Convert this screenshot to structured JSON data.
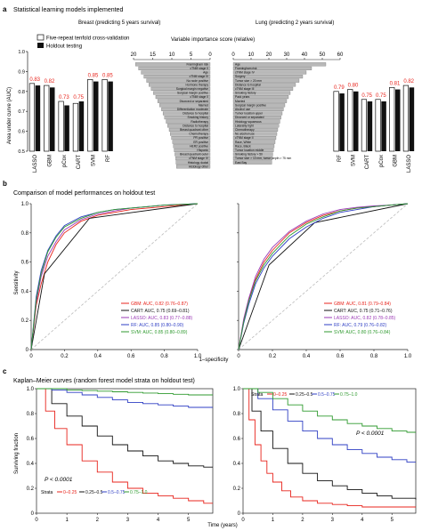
{
  "panels": {
    "a": {
      "letter": "a",
      "title": "Statistical learning models implemented",
      "breast_header": "Breast (predicting 5 years survival)",
      "lung_header": "Lung (predicting 2 years survival)",
      "legend": {
        "cv": "Five-repeat tenfold cross-validation",
        "holdout": "Holdout testing"
      },
      "ylabel": "Area under curve (AUC)",
      "vi_title": "Variable importance score (relative)"
    },
    "b": {
      "letter": "b",
      "title": "Comparison of model performances on holdout test",
      "ylabel": "Sensitivity",
      "xlabel": "1–specificity"
    },
    "c": {
      "letter": "c",
      "title": "Kaplan–Meier curves (random forest model strata on holdout test)",
      "ylabel": "Surviving fraction",
      "xlabel": "Time (years)"
    }
  },
  "colors": {
    "gbm": "#e8241c",
    "cart": "#111111",
    "lasso": "#9b39b5",
    "rf": "#2f3fc4",
    "svm": "#2f9a2f",
    "auc_label": "#e8241c",
    "vi_bar": "#b8b8b8",
    "holdout_bar": "#111111",
    "cv_bar": "#ffffff",
    "diagonal": "#bbbbbb",
    "km_s1": "#e8241c",
    "km_s2": "#111111",
    "km_s3": "#2f3fc4",
    "km_s4": "#2f9a2f"
  },
  "chart_data": [
    {
      "id": "a-breast-auc",
      "type": "bar",
      "categories": [
        "LASSO",
        "GBM",
        "pCox",
        "CART",
        "SVM",
        "RF"
      ],
      "series": [
        {
          "name": "Five-repeat tenfold cross-validation",
          "values": [
            0.84,
            0.83,
            0.75,
            0.74,
            0.86,
            0.86
          ]
        },
        {
          "name": "Holdout testing",
          "values": [
            0.83,
            0.82,
            0.73,
            0.75,
            0.85,
            0.85
          ]
        }
      ],
      "value_labels": [
        "0.83",
        "0.82",
        "0.73",
        "0.75",
        "0.85",
        "0.85"
      ],
      "ylim": [
        0.5,
        1.0
      ],
      "yticks": [
        "0.5",
        "0.6",
        "0.7",
        "0.8",
        "0.9",
        "1.0"
      ]
    },
    {
      "id": "a-lung-auc",
      "type": "bar",
      "categories": [
        "RF",
        "SVM",
        "CART",
        "pCox",
        "GBM",
        "LASSO"
      ],
      "series": [
        {
          "name": "Five-repeat tenfold cross-validation",
          "values": [
            0.8,
            0.81,
            0.76,
            0.76,
            0.82,
            0.83
          ]
        },
        {
          "name": "Holdout testing",
          "values": [
            0.79,
            0.8,
            0.75,
            0.75,
            0.81,
            0.82
          ]
        }
      ],
      "value_labels": [
        "0.79",
        "0.80",
        "0.75",
        "0.75",
        "0.81",
        "0.82"
      ],
      "ylim": [
        0.5,
        1.0
      ]
    },
    {
      "id": "a-breast-vi",
      "type": "bar",
      "orientation": "horizontal",
      "direction": "leftward",
      "xticks": [
        "20",
        "15",
        "10",
        "5",
        "0"
      ],
      "xlim": [
        0,
        20
      ],
      "categories": [
        "Framingham risk",
        "cTNM stage II",
        "Age",
        "cTNM stage III",
        "No node positive",
        "Hormone therapy",
        "Surgical margin negative",
        "Surgical margin positive",
        "cTNM stage 0",
        "Divorced or separated",
        "Married",
        "Differentiation moderate",
        "Distance to hospital",
        "Smoking history",
        "Radiotherapy",
        "Distance to hospital",
        "Breast quadrant other",
        "Chemotherapy",
        "PR positive",
        "ER positive",
        "HER2 positive",
        "Hispanic",
        "Breast quadrant outer",
        "cTNM stage IV",
        "Histology ductal",
        "Histology other"
      ],
      "values": [
        19.5,
        18.7,
        18.0,
        17.3,
        16.6,
        16.0,
        15.4,
        14.8,
        14.2,
        13.7,
        13.2,
        12.7,
        12.3,
        11.9,
        11.5,
        11.1,
        10.7,
        10.4,
        10.1,
        9.8,
        9.6,
        9.4,
        9.2,
        9.0,
        8.9,
        8.8
      ]
    },
    {
      "id": "a-lung-vi",
      "type": "bar",
      "orientation": "horizontal",
      "direction": "rightward",
      "xticks": [
        "0",
        "10",
        "20",
        "30",
        "40",
        "50",
        "60"
      ],
      "xlim": [
        0,
        60
      ],
      "categories": [
        "Age",
        "Framingham risk",
        "cTNM stage IV",
        "Surgery",
        "Tumor size > 20 mm",
        "Distance to hospital",
        "cTNM stage III",
        "Smoking history",
        "Pack years",
        "Married",
        "Surgical margin positive",
        "Alcohol use",
        "Tumor location upper",
        "Divorced or separated",
        "Histology squamous",
        "Laterality right",
        "Chemotherapy",
        "No alcohol use",
        "cTNM stage II",
        "Race, White",
        "Race, Black",
        "Tumor location middle",
        "Smoking history > 50",
        "Tumor size > 10 mm, tumor depth > 75 mm",
        "East Bay"
      ],
      "values": [
        52,
        44,
        41,
        39,
        37,
        35,
        33.5,
        32,
        31,
        30,
        29,
        28.2,
        27.5,
        26.8,
        26.2,
        25.6,
        25,
        24.5,
        24,
        23.5,
        23,
        22.6,
        22.2,
        21.9,
        21.6
      ]
    },
    {
      "id": "b-breast-roc",
      "type": "line",
      "xlim": [
        0,
        1
      ],
      "ylim": [
        0,
        1
      ],
      "ticks": [
        "0",
        "0.2",
        "0.4",
        "0.6",
        "0.8",
        "1.0"
      ],
      "series": [
        {
          "name": "GBM",
          "auc": "GBM: AUC, 0.82 (0.76–0.87)",
          "x": [
            0,
            0.03,
            0.06,
            0.1,
            0.15,
            0.2,
            0.3,
            0.4,
            0.5,
            0.6,
            0.7,
            0.8,
            0.9,
            1
          ],
          "y": [
            0,
            0.3,
            0.45,
            0.6,
            0.72,
            0.8,
            0.88,
            0.92,
            0.94,
            0.96,
            0.97,
            0.98,
            0.99,
            1
          ]
        },
        {
          "name": "CART",
          "auc": "CART: AUC, 0.75 (0.69–0.81)",
          "x": [
            0,
            0.08,
            0.35,
            1
          ],
          "y": [
            0,
            0.52,
            0.9,
            1
          ]
        },
        {
          "name": "LASSO",
          "auc": "LASSO: AUC, 0.83 (0.77–0.88)",
          "x": [
            0,
            0.03,
            0.06,
            0.1,
            0.15,
            0.2,
            0.3,
            0.4,
            0.5,
            0.6,
            0.7,
            0.8,
            0.9,
            1
          ],
          "y": [
            0,
            0.32,
            0.5,
            0.64,
            0.74,
            0.82,
            0.89,
            0.93,
            0.95,
            0.97,
            0.98,
            0.99,
            0.995,
            1
          ]
        },
        {
          "name": "RF",
          "auc": "RF: AUC, 0.85 (0.80–0.90)",
          "x": [
            0,
            0.03,
            0.06,
            0.1,
            0.15,
            0.2,
            0.3,
            0.4,
            0.5,
            0.6,
            0.7,
            0.8,
            0.9,
            1
          ],
          "y": [
            0,
            0.36,
            0.54,
            0.68,
            0.78,
            0.85,
            0.91,
            0.94,
            0.96,
            0.97,
            0.98,
            0.99,
            0.995,
            1
          ]
        },
        {
          "name": "SVM",
          "auc": "SVM: AUC, 0.85 (0.80–0.89)",
          "x": [
            0,
            0.03,
            0.06,
            0.1,
            0.15,
            0.2,
            0.3,
            0.4,
            0.5,
            0.6,
            0.7,
            0.8,
            0.9,
            1
          ],
          "y": [
            0,
            0.34,
            0.52,
            0.67,
            0.77,
            0.84,
            0.9,
            0.94,
            0.96,
            0.97,
            0.98,
            0.99,
            0.995,
            1
          ]
        }
      ]
    },
    {
      "id": "b-lung-roc",
      "type": "line",
      "xlim": [
        0,
        1
      ],
      "ylim": [
        0,
        1
      ],
      "ticks": [
        "0",
        "0.2",
        "0.4",
        "0.6",
        "0.8",
        "1.0"
      ],
      "series": [
        {
          "name": "GBM",
          "auc": "GBM: AUC, 0.81 (0.79–0.84)",
          "x": [
            0,
            0.03,
            0.06,
            0.1,
            0.15,
            0.2,
            0.3,
            0.4,
            0.5,
            0.6,
            0.7,
            0.8,
            0.9,
            1
          ],
          "y": [
            0,
            0.2,
            0.34,
            0.48,
            0.6,
            0.68,
            0.8,
            0.87,
            0.92,
            0.95,
            0.97,
            0.98,
            0.99,
            1
          ]
        },
        {
          "name": "CART",
          "auc": "CART: AUC, 0.75 (0.71–0.76)",
          "x": [
            0,
            0.18,
            0.45,
            1
          ],
          "y": [
            0,
            0.58,
            0.87,
            1
          ]
        },
        {
          "name": "LASSO",
          "auc": "LASSO: AUC, 0.82 (0.78–0.85)",
          "x": [
            0,
            0.03,
            0.06,
            0.1,
            0.15,
            0.2,
            0.3,
            0.4,
            0.5,
            0.6,
            0.7,
            0.8,
            0.9,
            1
          ],
          "y": [
            0,
            0.21,
            0.35,
            0.5,
            0.62,
            0.7,
            0.81,
            0.88,
            0.93,
            0.96,
            0.975,
            0.985,
            0.99,
            1
          ]
        },
        {
          "name": "RF",
          "auc": "RF: AUC, 0.79 (0.76–0.82)",
          "x": [
            0,
            0.03,
            0.06,
            0.1,
            0.15,
            0.2,
            0.3,
            0.4,
            0.5,
            0.6,
            0.7,
            0.8,
            0.9,
            1
          ],
          "y": [
            0,
            0.18,
            0.31,
            0.45,
            0.56,
            0.64,
            0.76,
            0.84,
            0.9,
            0.94,
            0.96,
            0.98,
            0.99,
            1
          ]
        },
        {
          "name": "SVM",
          "auc": "SVM: AUC, 0.80 (0.76–0.84)",
          "x": [
            0,
            0.03,
            0.06,
            0.1,
            0.15,
            0.2,
            0.3,
            0.4,
            0.5,
            0.6,
            0.7,
            0.8,
            0.9,
            1
          ],
          "y": [
            0,
            0.19,
            0.33,
            0.47,
            0.58,
            0.66,
            0.78,
            0.86,
            0.91,
            0.95,
            0.97,
            0.98,
            0.99,
            1
          ]
        }
      ]
    },
    {
      "id": "c-breast-km",
      "type": "line",
      "xlim": [
        0,
        5.8
      ],
      "ylim": [
        0,
        1
      ],
      "xticks": [
        "0",
        "1",
        "2",
        "3",
        "4",
        "5"
      ],
      "yticks": [
        "0",
        "0.2",
        "0.4",
        "0.6",
        "0.8",
        "1.0"
      ],
      "pvalue": "P < 0.0001",
      "strata_label": "Strata",
      "series": [
        {
          "name": "0–0.25",
          "x": [
            0,
            0.3,
            0.6,
            1,
            1.5,
            2,
            2.5,
            3,
            3.5,
            4,
            4.5,
            5,
            5.5,
            5.8
          ],
          "y": [
            1,
            0.82,
            0.68,
            0.55,
            0.42,
            0.33,
            0.25,
            0.2,
            0.16,
            0.14,
            0.12,
            0.1,
            0.08,
            0.08
          ]
        },
        {
          "name": "0.25–0.5",
          "x": [
            0,
            0.5,
            1,
            1.5,
            2,
            2.5,
            3,
            3.5,
            4,
            4.5,
            5,
            5.5,
            5.8
          ],
          "y": [
            1,
            0.88,
            0.78,
            0.7,
            0.62,
            0.55,
            0.5,
            0.46,
            0.42,
            0.4,
            0.38,
            0.37,
            0.37
          ]
        },
        {
          "name": "0.5–0.75",
          "x": [
            0,
            0.5,
            1,
            1.5,
            2,
            2.5,
            3,
            3.5,
            4,
            4.5,
            5,
            5.5,
            5.8
          ],
          "y": [
            1,
            0.99,
            0.97,
            0.95,
            0.93,
            0.91,
            0.89,
            0.88,
            0.87,
            0.86,
            0.85,
            0.85,
            0.85
          ]
        },
        {
          "name": "0.75–1.0",
          "x": [
            0,
            0.5,
            1,
            1.5,
            2,
            2.5,
            3,
            3.5,
            4,
            4.5,
            5,
            5.5,
            5.8
          ],
          "y": [
            1,
            1,
            0.99,
            0.985,
            0.98,
            0.975,
            0.97,
            0.965,
            0.96,
            0.955,
            0.95,
            0.95,
            0.95
          ]
        }
      ]
    },
    {
      "id": "c-lung-km",
      "type": "line",
      "xlim": [
        0,
        5.8
      ],
      "ylim": [
        0,
        1
      ],
      "xticks": [
        "0",
        "1",
        "2",
        "3",
        "4",
        "5"
      ],
      "yticks": [
        "0",
        "0.2",
        "0.4",
        "0.6",
        "0.8",
        "1.0"
      ],
      "pvalue": "P < 0.0001",
      "strata_label": "Strata",
      "series": [
        {
          "name": "0–0.25",
          "x": [
            0,
            0.2,
            0.4,
            0.6,
            0.8,
            1,
            1.3,
            1.6,
            2,
            2.5,
            3,
            3.5,
            4,
            4.5,
            5,
            5.8
          ],
          "y": [
            1,
            0.75,
            0.55,
            0.42,
            0.32,
            0.25,
            0.18,
            0.13,
            0.1,
            0.08,
            0.07,
            0.06,
            0.05,
            0.05,
            0.05,
            0.05
          ]
        },
        {
          "name": "0.25–0.5",
          "x": [
            0,
            0.3,
            0.6,
            1,
            1.5,
            2,
            2.5,
            3,
            3.5,
            4,
            4.5,
            5,
            5.8
          ],
          "y": [
            1,
            0.82,
            0.66,
            0.52,
            0.4,
            0.32,
            0.26,
            0.22,
            0.19,
            0.16,
            0.14,
            0.12,
            0.11
          ]
        },
        {
          "name": "0.5–0.75",
          "x": [
            0,
            0.5,
            1,
            1.5,
            2,
            2.5,
            3,
            3.5,
            4,
            4.5,
            5,
            5.5,
            5.8
          ],
          "y": [
            1,
            0.92,
            0.83,
            0.74,
            0.66,
            0.6,
            0.55,
            0.51,
            0.48,
            0.45,
            0.43,
            0.41,
            0.41
          ]
        },
        {
          "name": "0.75–1.0",
          "x": [
            0,
            0.5,
            1,
            1.5,
            2,
            2.5,
            3,
            3.5,
            4,
            4.5,
            5,
            5.5,
            5.8
          ],
          "y": [
            1,
            0.97,
            0.92,
            0.87,
            0.82,
            0.78,
            0.75,
            0.72,
            0.7,
            0.68,
            0.66,
            0.65,
            0.65
          ]
        }
      ]
    }
  ]
}
